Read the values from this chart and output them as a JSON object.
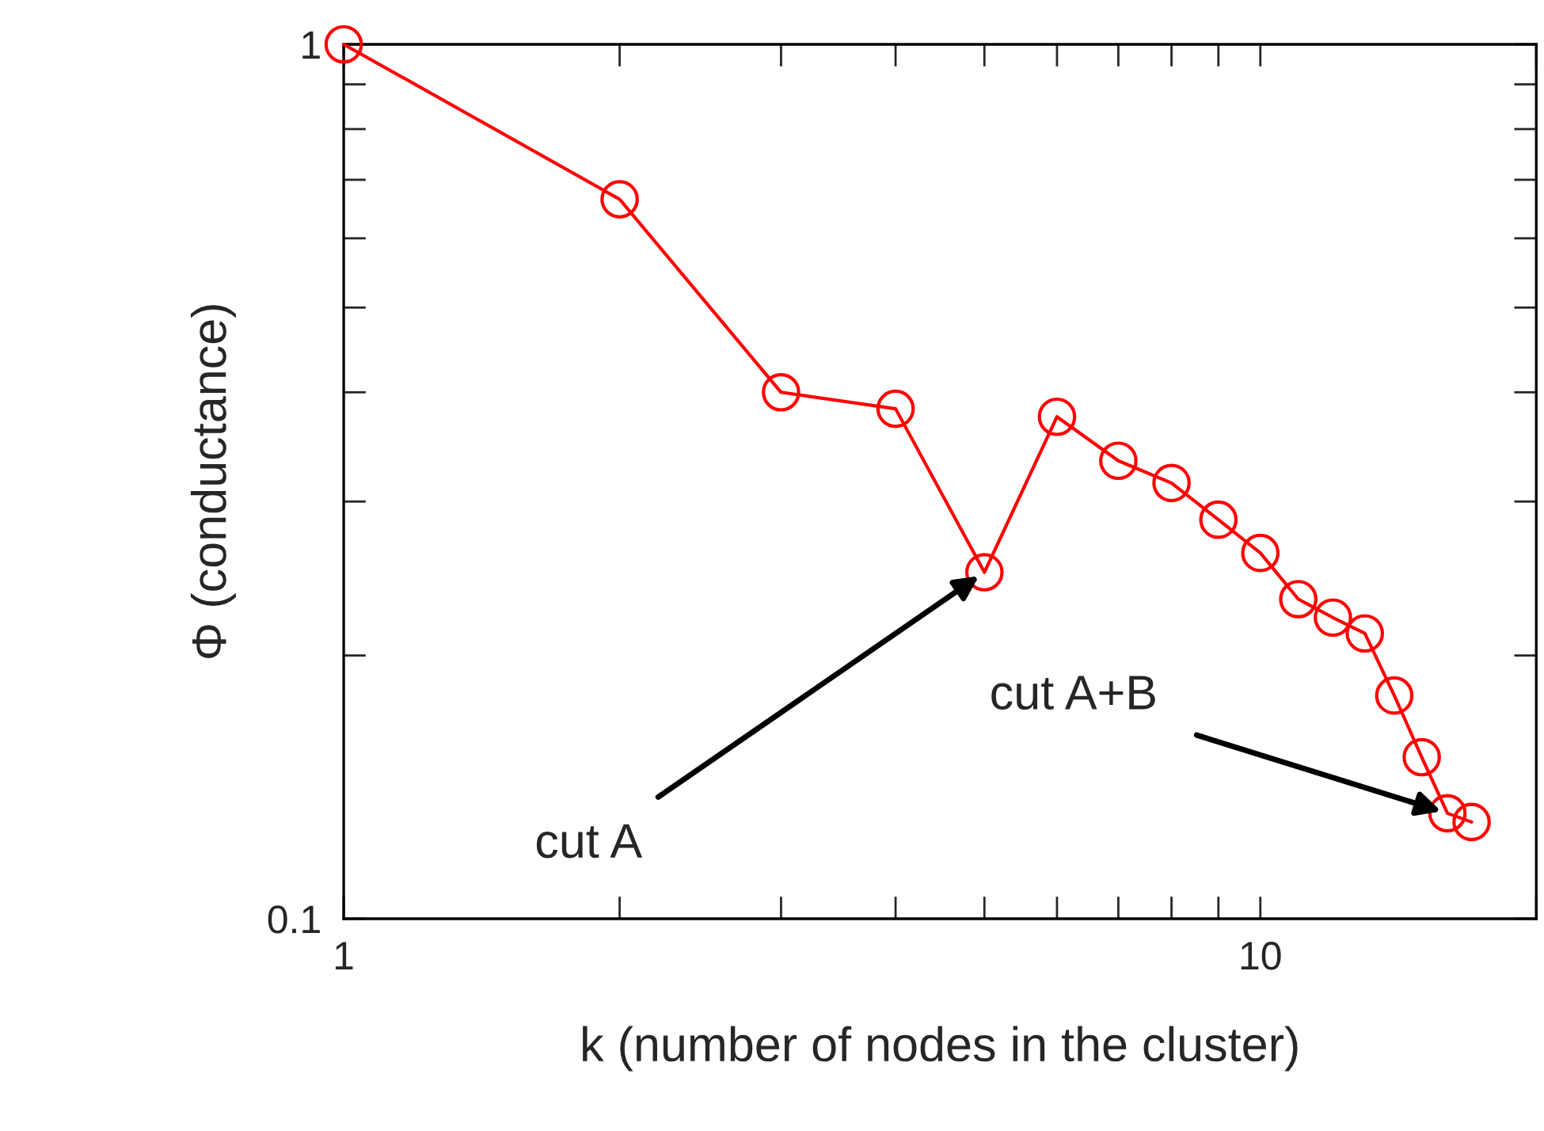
{
  "chart_data": {
    "type": "line",
    "xlabel": "k (number of nodes in the cluster)",
    "ylabel": "Φ (conductance)",
    "x": [
      1,
      2,
      3,
      4,
      5,
      6,
      7,
      8,
      9,
      10,
      11,
      12,
      13,
      14,
      15,
      16,
      17
    ],
    "series": [
      {
        "color": "#ff0000",
        "values": [
          1.0,
          0.665,
          0.4,
          0.383,
          0.249,
          0.375,
          0.334,
          0.315,
          0.286,
          0.262,
          0.232,
          0.221,
          0.212,
          0.18,
          0.153,
          0.132,
          0.129
        ]
      }
    ],
    "log": "xy",
    "xlim": [
      1,
      20
    ],
    "ylim": [
      0.1,
      1
    ],
    "xticks": [
      1,
      {
        "value": 2,
        "label": null
      },
      {
        "value": 3,
        "label": null
      },
      {
        "value": 4,
        "label": null
      },
      {
        "value": 5,
        "label": null
      },
      {
        "value": 6,
        "label": null
      },
      {
        "value": 7,
        "label": null
      },
      {
        "value": 8,
        "label": null
      },
      {
        "value": 9,
        "label": null
      },
      10,
      {
        "value": 20,
        "label": null
      }
    ],
    "yticks": [
      0.1,
      {
        "value": 0.2,
        "label": null
      },
      {
        "value": 0.3,
        "label": null
      },
      {
        "value": 0.4,
        "label": null
      },
      {
        "value": 0.5,
        "label": null
      },
      {
        "value": 0.6,
        "label": null
      },
      {
        "value": 0.7,
        "label": null
      },
      {
        "value": 0.8,
        "label": null
      },
      {
        "value": 0.9,
        "label": null
      },
      1
    ],
    "marker": "circle",
    "line_style": "solid",
    "grid": false,
    "legend": false,
    "annotations": [
      {
        "text": "cut A",
        "x": 5,
        "y": 0.249
      },
      {
        "text": "cut A+B",
        "x": 16,
        "y": 0.132
      }
    ]
  }
}
